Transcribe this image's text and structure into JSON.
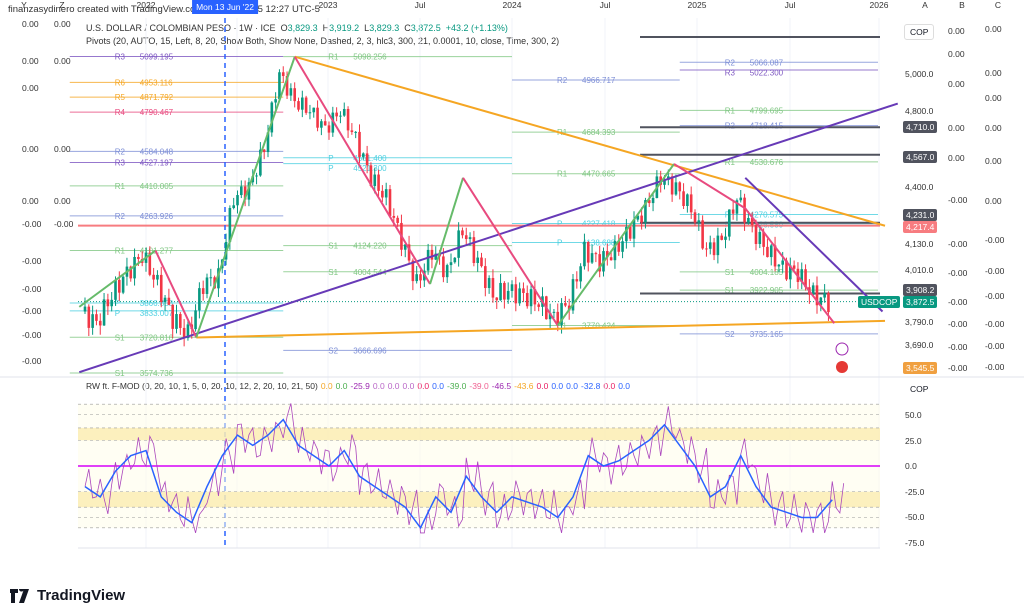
{
  "credit": "finanzasydinero created with TradingView.com, Oct 26, 2025 12:27 UTC-5",
  "symbol": {
    "name": "U.S. DOLLAR / COLOMBIAN PESO · 1W · ICE",
    "o_label": "O",
    "o": "3,829.3",
    "h_label": "H",
    "h": "3,919.2",
    "l_label": "L",
    "l": "3,829.3",
    "c_label": "C",
    "c": "3,872.5",
    "change": "+43.2 (+1.13%)"
  },
  "pivots_legend": "Pivots (20, AUTO, 15, Left, 8, 20, Show Both, Show None, Dashed, 2, 3, hlc3, 300, 21, 0.0001, 10, close, Time, 300, 2)",
  "osc_legend": {
    "title": "RW ft. F-MOD (0, 20, 10, 1, 5, 0, 20, 10, 12, 2, 20, 10, 21, 50)",
    "values": [
      {
        "t": "0.0",
        "c": "#f5a623"
      },
      {
        "t": "0.0",
        "c": "#4caf50"
      },
      {
        "t": "-25.9",
        "c": "#9c27b0"
      },
      {
        "t": "0.0",
        "c": "#ba68c8"
      },
      {
        "t": "0.0",
        "c": "#ba68c8"
      },
      {
        "t": "0.0",
        "c": "#ba68c8"
      },
      {
        "t": "0.0",
        "c": "#e91e63"
      },
      {
        "t": "0.0",
        "c": "#2962ff"
      },
      {
        "t": "-39.0",
        "c": "#4caf50"
      },
      {
        "t": "-39.0",
        "c": "#f06292"
      },
      {
        "t": "-46.5",
        "c": "#9c27b0"
      },
      {
        "t": "-43.6",
        "c": "#f5a623"
      },
      {
        "t": "0.0",
        "c": "#e91e63"
      },
      {
        "t": "0.0",
        "c": "#2962ff"
      },
      {
        "t": "0.0",
        "c": "#2962ff"
      },
      {
        "t": "-32.8",
        "c": "#2962ff"
      },
      {
        "t": "0.0",
        "c": "#e91e63"
      },
      {
        "t": "0.0",
        "c": "#2962ff"
      }
    ]
  },
  "price_axis": {
    "currency": "COP",
    "ticks": [
      "5,000.0",
      "4,800.0",
      "4,400.0",
      "4,130.0",
      "4,010.0",
      "3,790.0",
      "3,690.0"
    ]
  },
  "badges": [
    {
      "t": "4,710.0",
      "c": "#50535e"
    },
    {
      "t": "4,567.0",
      "c": "#50535e"
    },
    {
      "t": "4,231.0",
      "c": "#50535e"
    },
    {
      "t": "4,217.4",
      "c": "#f77c80"
    },
    {
      "t": "3,908.2",
      "c": "#50535e"
    },
    {
      "t": "3,872.5",
      "c": "#089981"
    },
    {
      "t": "3,545.5",
      "c": "#f0a040"
    }
  ],
  "symbol_badge": "USDCOP",
  "osc_axis": {
    "currency": "COP",
    "ticks": [
      "50.0",
      "25.0",
      "0.0",
      "-25.0",
      "-50.0",
      "-75.0"
    ]
  },
  "left_axis_a": [
    "0.00",
    "0.00",
    "0.00",
    "0.00",
    "0.00",
    "-0.00",
    "-0.00",
    "-0.00",
    "-0.00",
    "-0.00",
    "-0.00"
  ],
  "left_axis_b": [
    "0.00",
    "0.00",
    "0.00",
    "0.00",
    "-0.00"
  ],
  "right_axis_a": [
    "0.00",
    "0.00",
    "0.00",
    "0.00",
    "0.00",
    "-0.00",
    "-0.00",
    "-0.00",
    "-0.00",
    "-0.00",
    "-0.00",
    "-0.00"
  ],
  "right_axis_b": [
    "0.00",
    "0.00",
    "0.00",
    "0.00",
    "0.00",
    "0.00",
    "-0.00",
    "-0.00",
    "-0.00",
    "-0.00",
    "-0.00",
    "-0.00"
  ],
  "time_axis": {
    "left_buttons": [
      "Y",
      "Z"
    ],
    "labels": [
      "2022",
      "2023",
      "Jul",
      "2024",
      "Jul",
      "2025",
      "Jul",
      "2026"
    ],
    "crosshair": "Mon 13 Jun '22",
    "right_buttons": [
      "A",
      "B",
      "C"
    ]
  },
  "brand": "TradingView",
  "colors": {
    "up": "#089981",
    "down": "#f23645",
    "orange": "#f5a623",
    "purple": "#673ab7",
    "pink": "#e84a7f",
    "green": "#66bb6a",
    "red_line": "#f77c80",
    "crosshair": "#2962ff"
  },
  "chart_data": {
    "type": "candlestick",
    "scale": "log",
    "interval": "1W",
    "last": {
      "open": 3829.3,
      "high": 3919.2,
      "low": 3829.3,
      "close": 3872.5
    },
    "monthly_close": [
      [
        "2021-09",
        3830
      ],
      [
        "2021-10",
        3780
      ],
      [
        "2021-11",
        3900
      ],
      [
        "2021-12",
        4000
      ],
      [
        "2022-01",
        4080
      ],
      [
        "2022-02",
        3950
      ],
      [
        "2022-03",
        3800
      ],
      [
        "2022-04",
        3730
      ],
      [
        "2022-05",
        3950
      ],
      [
        "2022-06",
        3980
      ],
      [
        "2022-07",
        4350
      ],
      [
        "2022-08",
        4400
      ],
      [
        "2022-09",
        4600
      ],
      [
        "2022-10",
        5000
      ],
      [
        "2022-11",
        4850
      ],
      [
        "2022-12",
        4800
      ],
      [
        "2023-01",
        4700
      ],
      [
        "2023-02",
        4800
      ],
      [
        "2023-03",
        4650
      ],
      [
        "2023-04",
        4450
      ],
      [
        "2023-05",
        4350
      ],
      [
        "2023-06",
        4150
      ],
      [
        "2023-07",
        3950
      ],
      [
        "2023-08",
        4100
      ],
      [
        "2023-09",
        4000
      ],
      [
        "2023-10",
        4200
      ],
      [
        "2023-11",
        4050
      ],
      [
        "2023-12",
        3900
      ],
      [
        "2024-01",
        3920
      ],
      [
        "2024-02",
        3900
      ],
      [
        "2024-03",
        3870
      ],
      [
        "2024-04",
        3800
      ],
      [
        "2024-05",
        3870
      ],
      [
        "2024-06",
        4100
      ],
      [
        "2024-07",
        4050
      ],
      [
        "2024-08",
        4100
      ],
      [
        "2024-09",
        4200
      ],
      [
        "2024-10",
        4300
      ],
      [
        "2024-11",
        4450
      ],
      [
        "2024-12",
        4400
      ],
      [
        "2025-01",
        4300
      ],
      [
        "2025-02",
        4100
      ],
      [
        "2025-03",
        4150
      ],
      [
        "2025-04",
        4350
      ],
      [
        "2025-05",
        4200
      ],
      [
        "2025-06",
        4100
      ],
      [
        "2025-07",
        4020
      ],
      [
        "2025-08",
        4000
      ],
      [
        "2025-09",
        3900
      ],
      [
        "2025-10",
        3872.5
      ]
    ],
    "pivot_levels": [
      {
        "from": "2021-08",
        "to": "2022-10",
        "levels": [
          [
            "R3",
            "5099.195",
            "#7e57c2"
          ],
          [
            "R6",
            "4953.116",
            "#f5a623"
          ],
          [
            "R5",
            "4871.792",
            "#f5a623"
          ],
          [
            "R4",
            "4790.467",
            "#e84a7f"
          ],
          [
            "R2",
            "4584.048",
            "#7e8fd6"
          ],
          [
            "R3",
            "4527.197",
            "#7e57c2"
          ],
          [
            "R1",
            "4410.005",
            "#81c784"
          ],
          [
            "R2",
            "4263.926",
            "#7e8fd6"
          ],
          [
            "R1",
            "4101.277",
            "#81c784"
          ],
          [
            "P",
            "3866.858",
            "#4dd0e1"
          ],
          [
            "P",
            "3833.007",
            "#4dd0e1"
          ],
          [
            "S1",
            "3720.816",
            "#81c784"
          ],
          [
            "S1",
            "3574.736",
            "#81c784"
          ]
        ]
      },
      {
        "from": "2022-10",
        "to": "2024-01",
        "levels": [
          [
            "R1",
            "5098.256",
            "#81c784"
          ],
          [
            "P",
            "4521.300",
            "#4dd0e1"
          ],
          [
            "P",
            "4551.400",
            "#4dd0e1"
          ],
          [
            "S1",
            "4124.220",
            "#81c784"
          ],
          [
            "S1",
            "4004.544",
            "#81c784"
          ],
          [
            "S2",
            "3666.696",
            "#7e8fd6"
          ]
        ]
      },
      {
        "from": "2024-01",
        "to": "2024-12",
        "levels": [
          [
            "R2",
            "4966.717",
            "#7e8fd6"
          ],
          [
            "R1",
            "4684.393",
            "#81c784"
          ],
          [
            "R1",
            "4470.665",
            "#81c784"
          ],
          [
            "P",
            "4227.418",
            "#4dd0e1"
          ],
          [
            "P",
            "4138.688",
            "#4dd0e1"
          ],
          [
            "S1",
            "3770.424",
            "#81c784"
          ]
        ]
      },
      {
        "from": "2024-12",
        "to": "2026-01",
        "levels": [
          [
            "R2",
            "5066.087",
            "#7e8fd6"
          ],
          [
            "R3",
            "5022.300",
            "#7e57c2"
          ],
          [
            "R1",
            "4799.695",
            "#81c784"
          ],
          [
            "R2",
            "4718.415",
            "#7e8fd6"
          ],
          [
            "R1",
            "4530.676",
            "#81c784"
          ],
          [
            "P",
            "4270.575",
            "#4dd0e1"
          ],
          [
            "P",
            "4226.580",
            "#4dd0e1"
          ],
          [
            "S1",
            "4004.185",
            "#81c784"
          ],
          [
            "S1",
            "3922.905",
            "#81c784"
          ],
          [
            "S2",
            "3735.165",
            "#7e8fd6"
          ]
        ]
      }
    ],
    "horizontal_levels": [
      4710.0,
      4567.0,
      4231.0,
      4217.4,
      3908.2
    ],
    "trendlines": [
      {
        "c": "orange",
        "p": [
          [
            "2022-10-24",
            5098
          ],
          [
            "2026-01-15",
            4217
          ]
        ]
      },
      {
        "c": "orange",
        "p": [
          [
            "2022-04-10",
            3720
          ],
          [
            "2026-01-15",
            3790
          ]
        ]
      },
      {
        "c": "purple",
        "p": [
          [
            "2021-08-20",
            3578
          ],
          [
            "2026-02-10",
            4837
          ]
        ]
      },
      {
        "c": "purple",
        "p": [
          [
            "2025-04-10",
            4450
          ],
          [
            "2026-01-10",
            3830
          ]
        ]
      }
    ],
    "zigzag": [
      [
        "2021-08-20",
        3850
      ],
      [
        "2022-01-20",
        4101
      ],
      [
        "2022-04-10",
        3720
      ],
      [
        "2022-10-24",
        5098
      ],
      [
        "2023-07-20",
        3950
      ],
      [
        "2023-09-25",
        4450
      ],
      [
        "2024-04-01",
        3770
      ],
      [
        "2024-11-20",
        4520
      ],
      [
        "2025-04-10",
        4300
      ],
      [
        "2025-10-05",
        3780
      ]
    ],
    "osc_monthly": [
      -20,
      -30,
      -5,
      10,
      15,
      -30,
      -45,
      -55,
      -20,
      10,
      30,
      20,
      30,
      45,
      20,
      10,
      0,
      15,
      -10,
      -20,
      -30,
      -40,
      -60,
      -30,
      -45,
      -10,
      -30,
      -45,
      -30,
      -35,
      -40,
      -50,
      -30,
      10,
      0,
      5,
      15,
      25,
      40,
      20,
      0,
      -30,
      -20,
      10,
      -20,
      -40,
      -45,
      -50,
      -50,
      -32.8
    ],
    "osc_ylim": [
      -75,
      60
    ]
  }
}
